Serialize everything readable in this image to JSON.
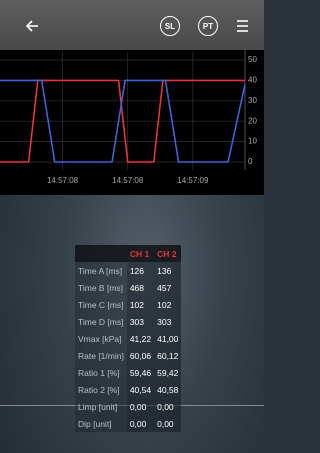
{
  "header": {
    "buttons": [
      "SL",
      "PT"
    ]
  },
  "chart_data": {
    "type": "line",
    "xlim": [
      57.52,
      59.4
    ],
    "ylim": [
      0,
      50
    ],
    "xticks": [
      {
        "value": 58,
        "label": "14:57:08"
      },
      {
        "value": 58.5,
        "label": "14:57:08"
      },
      {
        "value": 59,
        "label": "14:57:09"
      }
    ],
    "yticks": [
      0,
      10,
      20,
      30,
      40,
      50
    ],
    "grid": true,
    "series": [
      {
        "color": "#e8323c",
        "x": [
          57.52,
          57.74,
          57.81,
          58.43,
          58.5,
          58.7,
          58.77,
          59.4
        ],
        "values": [
          0,
          0,
          40,
          40,
          0,
          0,
          40,
          40
        ]
      },
      {
        "color": "#3f63d8",
        "x": [
          57.52,
          57.84,
          57.94,
          58.38,
          58.48,
          58.79,
          58.89,
          59.27,
          59.4
        ],
        "values": [
          40,
          40,
          0,
          0,
          40,
          40,
          0,
          0,
          38
        ]
      }
    ]
  },
  "table": {
    "columns": [
      "CH 1",
      "CH 2"
    ],
    "rows": [
      [
        "Time A [ms]",
        "126",
        "136"
      ],
      [
        "Time B [ms]",
        "468",
        "457"
      ],
      [
        "Time C [ms]",
        "102",
        "102"
      ],
      [
        "Time D [ms]",
        "303",
        "303"
      ],
      [
        "Vmax [kPa]",
        "41,22",
        "41,00"
      ],
      [
        "Rate [1/min]",
        "60,06",
        "60,12"
      ],
      [
        "Ratio 1 [%]",
        "59,46",
        "59,42"
      ],
      [
        "Ratio 2 [%]",
        "40,54",
        "40,58"
      ],
      [
        "Limp [unit]",
        "0,00",
        "0,00"
      ],
      [
        "Dip [unit]",
        "0,00",
        "0,00"
      ]
    ]
  }
}
